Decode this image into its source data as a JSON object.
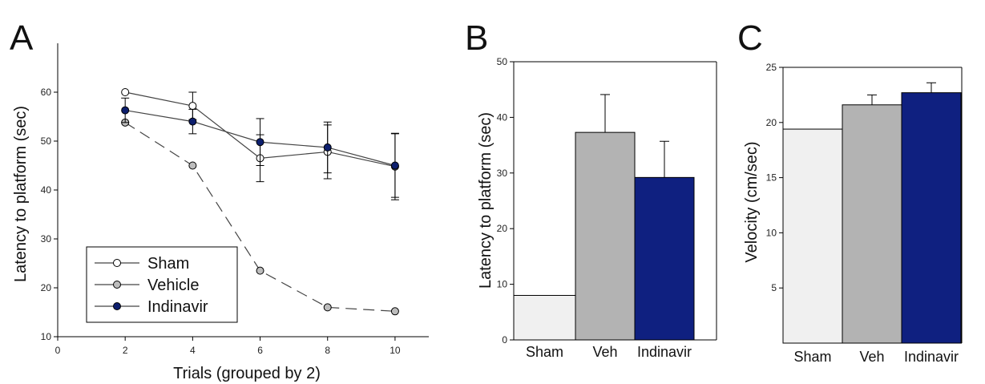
{
  "chart_data": [
    {
      "panel": "A",
      "type": "line",
      "xlabel": "Trials (grouped by 2)",
      "ylabel": "Latency to platform (sec)",
      "xlim": [
        0,
        11
      ],
      "ylim": [
        10,
        70
      ],
      "xticks": [
        0,
        2,
        4,
        6,
        8,
        10
      ],
      "yticks": [
        10,
        20,
        30,
        40,
        50,
        60
      ],
      "legend_position": "bottom-left",
      "series": [
        {
          "name": "Sham",
          "color": "#ffffff",
          "line_style": "solid",
          "x": [
            2,
            4,
            6,
            8,
            10
          ],
          "y": [
            60,
            57.2,
            46.5,
            47.8,
            44.8
          ],
          "err": [
            0,
            2.8,
            4.8,
            5.5,
            6.8
          ]
        },
        {
          "name": "Vehicle",
          "color": "#bdbdbd",
          "line_style": "dashed",
          "x": [
            2,
            4,
            6,
            8,
            10
          ],
          "y": [
            53.8,
            45,
            23.5,
            16,
            15.2
          ],
          "err": [
            0,
            0,
            0,
            0,
            0
          ]
        },
        {
          "name": "Indinavir",
          "color": "#0d1f6e",
          "line_style": "solid",
          "x": [
            2,
            4,
            6,
            8,
            10
          ],
          "y": [
            56.3,
            54,
            49.8,
            48.7,
            45
          ],
          "err": [
            2.5,
            2.5,
            4.8,
            5.2,
            6.5
          ]
        }
      ]
    },
    {
      "panel": "B",
      "type": "bar",
      "ylabel": "Latency to platform (sec)",
      "ylim": [
        0,
        50
      ],
      "yticks": [
        0,
        10,
        20,
        30,
        40,
        50
      ],
      "categories": [
        "Sham",
        "Veh",
        "Indinavir"
      ],
      "values": [
        8,
        37.3,
        29.2
      ],
      "errors": [
        0,
        6.8,
        6.5
      ],
      "colors": [
        "#f0f0f0",
        "#b3b3b3",
        "#0f2080"
      ]
    },
    {
      "panel": "C",
      "type": "bar",
      "ylabel": "Velocity (cm/sec)",
      "ylim": [
        0,
        25
      ],
      "yticks": [
        5,
        10,
        15,
        20,
        25
      ],
      "categories": [
        "Sham",
        "Veh",
        "Indinavir"
      ],
      "values": [
        19.4,
        21.6,
        22.7
      ],
      "errors": [
        0,
        0.9,
        0.9
      ],
      "colors": [
        "#f0f0f0",
        "#b3b3b3",
        "#0f2080"
      ]
    }
  ]
}
